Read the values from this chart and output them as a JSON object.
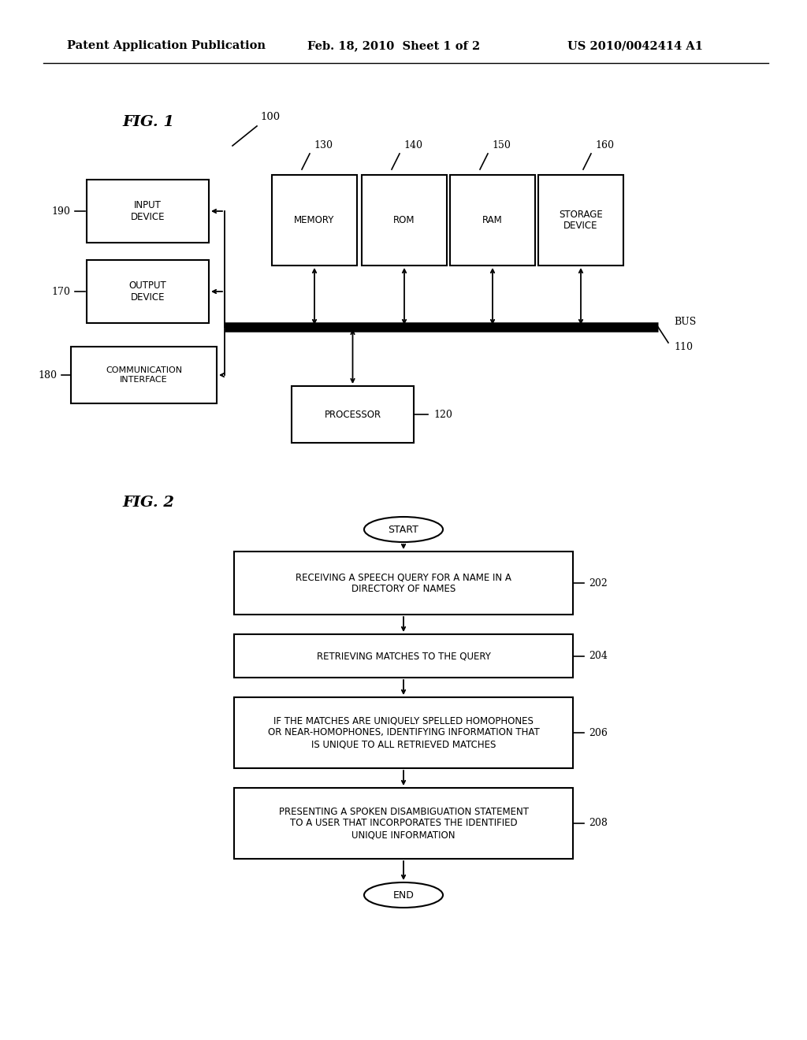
{
  "header_left": "Patent Application Publication",
  "header_mid": "Feb. 18, 2010  Sheet 1 of 2",
  "header_right": "US 2010/0042414 A1",
  "fig1_title": "FIG. 1",
  "fig2_title": "FIG. 2",
  "bg_color": "#ffffff",
  "line_color": "#000000",
  "text_color": "#000000"
}
